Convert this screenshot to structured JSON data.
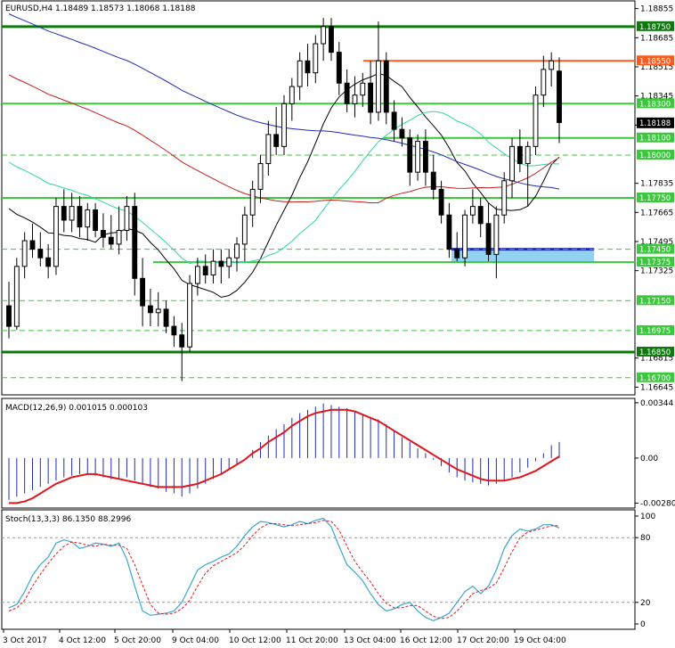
{
  "chart_data": {
    "type": "candlestick",
    "symbol": "EURUSD,H4",
    "ohlc_readout": [
      "1.18489",
      "1.18573",
      "1.18068",
      "1.18188"
    ],
    "colors": {
      "bull_body": "#ffffff",
      "bear_body": "#000000",
      "ma_fast": "#000000",
      "ma_mid": "#2fd6a8",
      "ma_slow": "#c0201e",
      "ma_long": "#1f2bb3",
      "level_green": "#3cc83c",
      "level_dark": "#0e7a0e",
      "level_red": "#ff5a1e",
      "zone_fill": "#8fd3f0",
      "zone_border": "#1f2bb3",
      "macd_signal": "#e0161e",
      "stoch_main": "#3aa6d0",
      "stoch_signal": "#e0161e",
      "price_label_bg": "#3cc83c",
      "current_label_bg": "#000000"
    },
    "price_axis": {
      "min": 1.166,
      "max": 1.189,
      "ticks": [
        "1.18855",
        "1.18685",
        "1.18515",
        "1.18345",
        "1.18175",
        "1.17835",
        "1.17665",
        "1.17495",
        "1.17325",
        "1.16815",
        "1.16645"
      ]
    },
    "level_lines": [
      {
        "label": "1.18750",
        "value": 1.1875,
        "style": "dark"
      },
      {
        "label": "1.18550",
        "value": 1.1855,
        "style": "red"
      },
      {
        "label": "1.18300",
        "value": 1.183,
        "style": "green"
      },
      {
        "label": "1.18100",
        "value": 1.181,
        "style": "green"
      },
      {
        "label": "1.18000",
        "value": 1.18,
        "style": "dash"
      },
      {
        "label": "1.17750",
        "value": 1.1775,
        "style": "green"
      },
      {
        "label": "1.17450",
        "value": 1.1745,
        "style": "zone-top"
      },
      {
        "label": "1.17375",
        "value": 1.17375,
        "style": "green"
      },
      {
        "label": "1.17150",
        "value": 1.1715,
        "style": "dash"
      },
      {
        "label": "1.16975",
        "value": 1.16975,
        "style": "dash"
      },
      {
        "label": "1.16850",
        "value": 1.1685,
        "style": "dark"
      },
      {
        "label": "1.16700",
        "value": 1.167,
        "style": "dash"
      }
    ],
    "current_price_label": "1.18188",
    "current_price": 1.18188,
    "candles": [
      [
        1.1712,
        1.1726,
        1.1693,
        1.17
      ],
      [
        1.17,
        1.174,
        1.1698,
        1.1735
      ],
      [
        1.1735,
        1.1755,
        1.1728,
        1.175
      ],
      [
        1.175,
        1.176,
        1.174,
        1.1745
      ],
      [
        1.1745,
        1.1755,
        1.1735,
        1.174
      ],
      [
        1.174,
        1.1748,
        1.1728,
        1.1735
      ],
      [
        1.1735,
        1.1775,
        1.173,
        1.177
      ],
      [
        1.177,
        1.178,
        1.1755,
        1.1762
      ],
      [
        1.1762,
        1.1778,
        1.1755,
        1.177
      ],
      [
        1.177,
        1.1776,
        1.1752,
        1.1758
      ],
      [
        1.1758,
        1.1772,
        1.175,
        1.1768
      ],
      [
        1.1768,
        1.1772,
        1.1752,
        1.1756
      ],
      [
        1.1756,
        1.1766,
        1.1746,
        1.1752
      ],
      [
        1.1752,
        1.1765,
        1.1745,
        1.1748
      ],
      [
        1.1748,
        1.177,
        1.1742,
        1.1756
      ],
      [
        1.1756,
        1.1776,
        1.175,
        1.177
      ],
      [
        1.177,
        1.1778,
        1.1718,
        1.1728
      ],
      [
        1.1728,
        1.174,
        1.17,
        1.1712
      ],
      [
        1.1712,
        1.1722,
        1.17,
        1.1708
      ],
      [
        1.1708,
        1.172,
        1.17,
        1.171
      ],
      [
        1.171,
        1.1715,
        1.1696,
        1.17
      ],
      [
        1.17,
        1.1706,
        1.1688,
        1.1695
      ],
      [
        1.1695,
        1.1702,
        1.1668,
        1.1688
      ],
      [
        1.1688,
        1.173,
        1.1685,
        1.1725
      ],
      [
        1.1725,
        1.174,
        1.1718,
        1.1735
      ],
      [
        1.1735,
        1.1742,
        1.1725,
        1.173
      ],
      [
        1.173,
        1.1745,
        1.1725,
        1.1738
      ],
      [
        1.1738,
        1.1745,
        1.1725,
        1.1735
      ],
      [
        1.1735,
        1.1745,
        1.1728,
        1.174
      ],
      [
        1.174,
        1.1752,
        1.1732,
        1.1748
      ],
      [
        1.1748,
        1.177,
        1.1738,
        1.1765
      ],
      [
        1.1765,
        1.1785,
        1.1758,
        1.178
      ],
      [
        1.178,
        1.18,
        1.1772,
        1.1795
      ],
      [
        1.1795,
        1.182,
        1.1788,
        1.1812
      ],
      [
        1.1812,
        1.1828,
        1.18,
        1.1805
      ],
      [
        1.1805,
        1.1835,
        1.18,
        1.183
      ],
      [
        1.183,
        1.1845,
        1.182,
        1.184
      ],
      [
        1.184,
        1.186,
        1.1832,
        1.1855
      ],
      [
        1.1855,
        1.1865,
        1.184,
        1.1848
      ],
      [
        1.1848,
        1.187,
        1.1842,
        1.1865
      ],
      [
        1.1865,
        1.188,
        1.1855,
        1.1875
      ],
      [
        1.1875,
        1.188,
        1.1855,
        1.186
      ],
      [
        1.186,
        1.1866,
        1.1835,
        1.1842
      ],
      [
        1.1842,
        1.185,
        1.1825,
        1.183
      ],
      [
        1.183,
        1.1846,
        1.1822,
        1.1835
      ],
      [
        1.1835,
        1.1848,
        1.1828,
        1.1842
      ],
      [
        1.1842,
        1.1855,
        1.1818,
        1.1825
      ],
      [
        1.1825,
        1.1878,
        1.182,
        1.1855
      ],
      [
        1.1855,
        1.186,
        1.1818,
        1.1825
      ],
      [
        1.1825,
        1.1832,
        1.1808,
        1.1815
      ],
      [
        1.1815,
        1.1822,
        1.1805,
        1.181
      ],
      [
        1.181,
        1.1815,
        1.1782,
        1.179
      ],
      [
        1.179,
        1.1812,
        1.1785,
        1.1808
      ],
      [
        1.1808,
        1.1815,
        1.1782,
        1.179
      ],
      [
        1.179,
        1.18,
        1.1774,
        1.178
      ],
      [
        1.178,
        1.1785,
        1.176,
        1.1765
      ],
      [
        1.1765,
        1.1772,
        1.174,
        1.1745
      ],
      [
        1.1745,
        1.1755,
        1.1738,
        1.174
      ],
      [
        1.174,
        1.1768,
        1.1735,
        1.1765
      ],
      [
        1.1765,
        1.178,
        1.176,
        1.177
      ],
      [
        1.177,
        1.1775,
        1.1752,
        1.176
      ],
      [
        1.176,
        1.1772,
        1.1738,
        1.1742
      ],
      [
        1.1742,
        1.177,
        1.1728,
        1.1765
      ],
      [
        1.1765,
        1.179,
        1.176,
        1.1785
      ],
      [
        1.1785,
        1.181,
        1.1775,
        1.1805
      ],
      [
        1.1805,
        1.1815,
        1.179,
        1.1795
      ],
      [
        1.1795,
        1.1808,
        1.177,
        1.1805
      ],
      [
        1.1805,
        1.184,
        1.18,
        1.1835
      ],
      [
        1.1835,
        1.1858,
        1.1828,
        1.185
      ],
      [
        1.185,
        1.186,
        1.184,
        1.1855
      ],
      [
        1.1849,
        1.1857,
        1.1807,
        1.1819
      ]
    ],
    "macd": {
      "label": "MACD(12,26,9) 0.001015 0.000103",
      "axis_min": -0.003,
      "axis_max": 0.0036,
      "ticks": [
        "0.00344",
        "0.00",
        "-0.002808"
      ],
      "histogram": [
        -0.0026,
        -0.0024,
        -0.0022,
        -0.002,
        -0.0018,
        -0.0016,
        -0.0014,
        -0.0012,
        -0.0011,
        -0.001,
        -0.001,
        -0.0011,
        -0.0012,
        -0.0013,
        -0.0013,
        -0.0012,
        -0.0014,
        -0.0016,
        -0.0018,
        -0.0019,
        -0.0021,
        -0.0022,
        -0.0024,
        -0.0022,
        -0.0019,
        -0.0016,
        -0.0013,
        -0.001,
        -0.0007,
        -0.0004,
        0.0,
        0.0005,
        0.001,
        0.0014,
        0.0018,
        0.0021,
        0.0025,
        0.0028,
        0.003,
        0.0032,
        0.0034,
        0.0033,
        0.0032,
        0.0031,
        0.0029,
        0.0027,
        0.0025,
        0.0024,
        0.0021,
        0.0017,
        0.0013,
        0.001,
        0.0006,
        0.0003,
        -0.0001,
        -0.0005,
        -0.0009,
        -0.0012,
        -0.0014,
        -0.0015,
        -0.0016,
        -0.0017,
        -0.0016,
        -0.0014,
        -0.0012,
        -0.0009,
        -0.0006,
        -0.0002,
        0.0003,
        0.0008,
        0.001
      ],
      "signal": [
        -0.0028,
        -0.0028,
        -0.0027,
        -0.0025,
        -0.0022,
        -0.0019,
        -0.0016,
        -0.0014,
        -0.0012,
        -0.0011,
        -0.001,
        -0.001,
        -0.0011,
        -0.0012,
        -0.0013,
        -0.0014,
        -0.0015,
        -0.0016,
        -0.0017,
        -0.0018,
        -0.0018,
        -0.0018,
        -0.0018,
        -0.0017,
        -0.0016,
        -0.0014,
        -0.0012,
        -0.001,
        -0.0007,
        -0.0004,
        -0.0001,
        0.0003,
        0.0006,
        0.001,
        0.0013,
        0.0016,
        0.002,
        0.0023,
        0.0026,
        0.0028,
        0.0029,
        0.003,
        0.003,
        0.003,
        0.0029,
        0.0027,
        0.0025,
        0.0023,
        0.002,
        0.0017,
        0.0014,
        0.0011,
        0.0008,
        0.0005,
        0.0002,
        -0.0001,
        -0.0004,
        -0.0007,
        -0.0009,
        -0.0011,
        -0.0013,
        -0.0014,
        -0.0014,
        -0.0014,
        -0.0013,
        -0.0012,
        -0.001,
        -0.0008,
        -0.0005,
        -0.0002,
        0.0001
      ]
    },
    "stoch": {
      "label": "Stoch(13,3,3) 86.1350 88.2996",
      "ticks": [
        "100",
        "80",
        "20",
        "0"
      ],
      "main": [
        15,
        18,
        30,
        45,
        55,
        62,
        75,
        78,
        76,
        70,
        72,
        75,
        74,
        72,
        75,
        60,
        35,
        12,
        8,
        9,
        10,
        12,
        20,
        35,
        50,
        55,
        58,
        62,
        65,
        72,
        82,
        90,
        95,
        94,
        92,
        90,
        92,
        95,
        93,
        96,
        98,
        90,
        72,
        55,
        48,
        40,
        28,
        18,
        12,
        14,
        18,
        20,
        12,
        6,
        3,
        6,
        10,
        20,
        30,
        35,
        28,
        35,
        50,
        70,
        82,
        88,
        86,
        88,
        92,
        92,
        89
      ],
      "signal": [
        12,
        15,
        22,
        35,
        46,
        56,
        65,
        72,
        76,
        75,
        73,
        72,
        74,
        73,
        73,
        70,
        55,
        36,
        18,
        10,
        9,
        10,
        14,
        22,
        35,
        47,
        54,
        58,
        62,
        66,
        73,
        82,
        89,
        93,
        93,
        92,
        91,
        92,
        93,
        94,
        96,
        95,
        87,
        72,
        58,
        48,
        39,
        28,
        19,
        15,
        15,
        17,
        17,
        12,
        7,
        5,
        6,
        12,
        20,
        28,
        31,
        33,
        38,
        52,
        67,
        80,
        85,
        87,
        89,
        91,
        91
      ]
    },
    "time_labels": [
      "3 Oct 2017",
      "4 Oct 12:00",
      "5 Oct 20:00",
      "9 Oct 04:00",
      "10 Oct 12:00",
      "11 Oct 20:00",
      "13 Oct 04:00",
      "16 Oct 12:00",
      "17 Oct 20:00",
      "19 Oct 04:00"
    ]
  }
}
